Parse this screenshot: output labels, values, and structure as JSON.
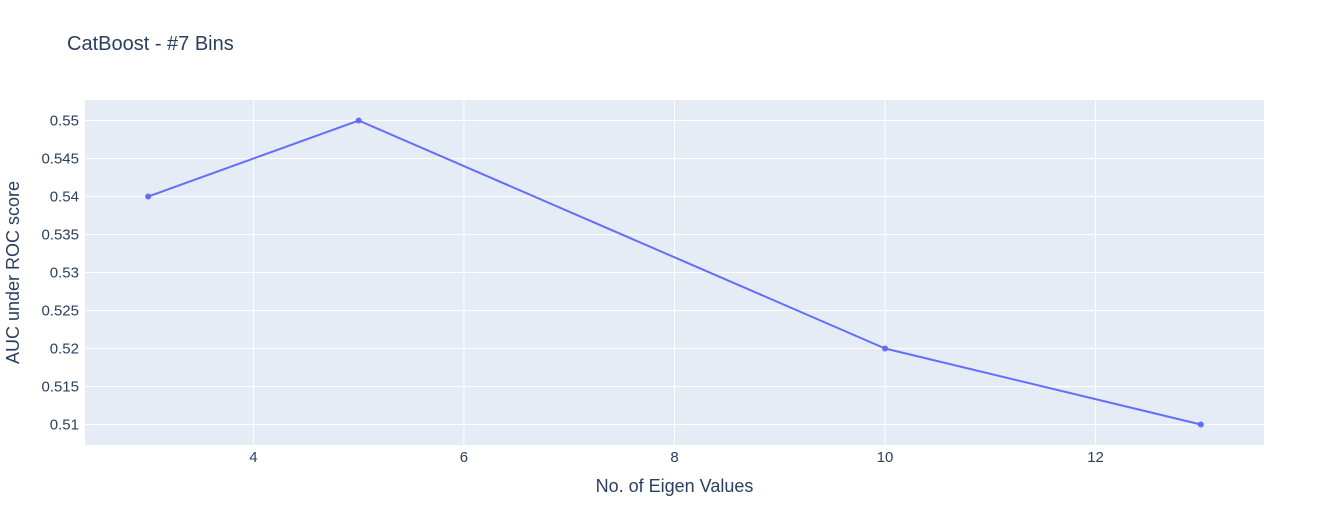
{
  "chart_data": {
    "type": "line",
    "title": "CatBoost - #7 Bins",
    "xlabel": "No. of Eigen Values",
    "ylabel": "AUC under ROC score",
    "x": [
      3,
      5,
      10,
      13
    ],
    "series": [
      {
        "values": [
          0.54,
          0.55,
          0.52,
          0.51
        ]
      }
    ],
    "xlim": [
      2.4,
      13.6
    ],
    "ylim": [
      0.5073,
      0.5527
    ],
    "x_ticks": [
      4,
      6,
      8,
      10,
      12
    ],
    "x_tick_labels": [
      "4",
      "6",
      "8",
      "10",
      "12"
    ],
    "y_ticks": [
      0.51,
      0.515,
      0.52,
      0.525,
      0.53,
      0.535,
      0.54,
      0.545,
      0.55
    ],
    "y_tick_labels": [
      "0.51",
      "0.515",
      "0.52",
      "0.525",
      "0.53",
      "0.535",
      "0.54",
      "0.545",
      "0.55"
    ],
    "grid": true,
    "legend": "none",
    "colors": {
      "plot_background": "#e5ecf6",
      "grid": "#ffffff",
      "line": "#636efa",
      "text": "#2a3f5f"
    }
  }
}
